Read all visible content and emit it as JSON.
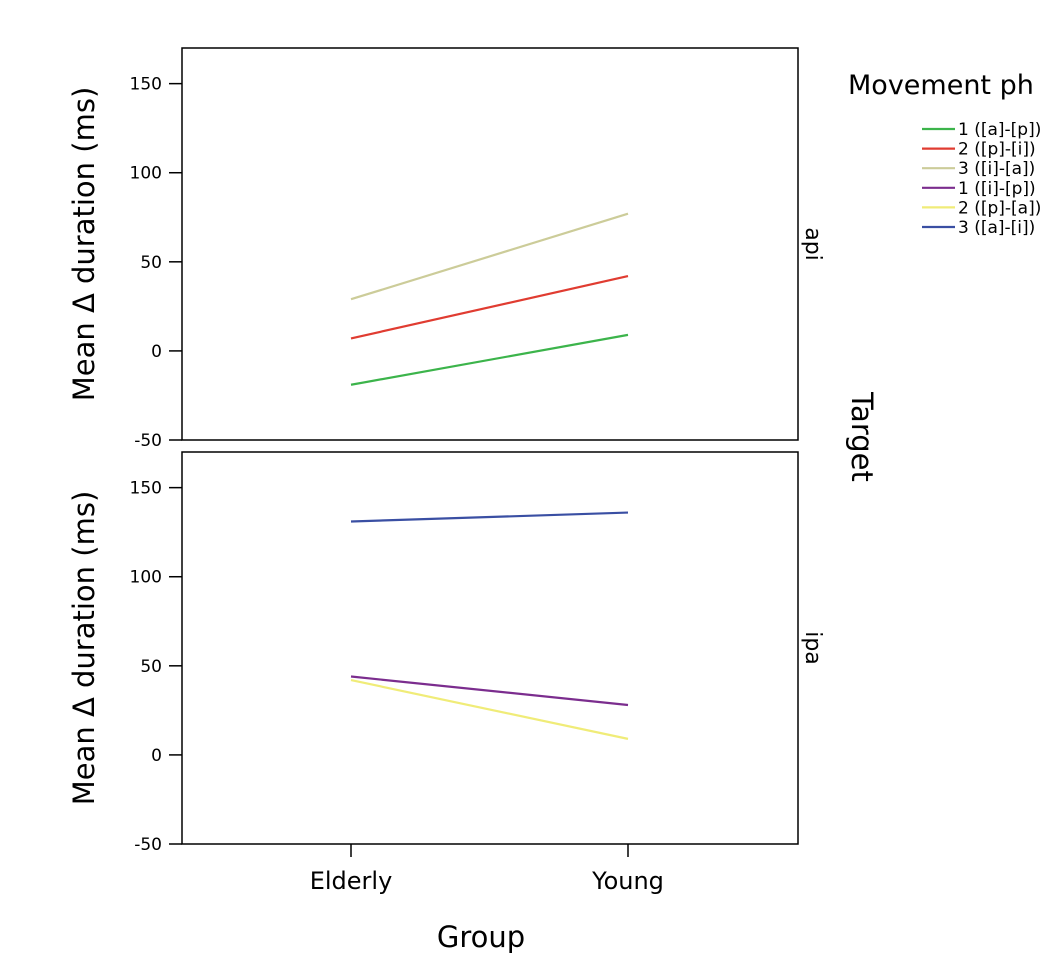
{
  "chart_data": {
    "type": "line",
    "x": [
      "Elderly",
      "Young"
    ],
    "xlabel": "Group",
    "ylabel": "Mean  Δ duration (ms)",
    "ylim": [
      -50,
      170
    ],
    "yticks": [
      -50,
      0,
      50,
      100,
      150
    ],
    "facet_title": "Target",
    "legend_title": "Movement ph",
    "legend_position": "top-right",
    "grid": false,
    "panels": [
      {
        "label": "api",
        "series": [
          {
            "name": "1 ([a]-[p])",
            "color": "#3cb44b",
            "values": [
              -19,
              9
            ]
          },
          {
            "name": "2 ([p]-[i])",
            "color": "#e03c31",
            "values": [
              7,
              42
            ]
          },
          {
            "name": "3 ([i]-[a])",
            "color": "#cccc99",
            "values": [
              29,
              77
            ]
          }
        ]
      },
      {
        "label": "ipa",
        "series": [
          {
            "name": "1 ([i]-[p])",
            "color": "#7b2d8e",
            "values": [
              44,
              28
            ]
          },
          {
            "name": "2 ([p]-[a])",
            "color": "#f0ec78",
            "values": [
              42,
              9
            ]
          },
          {
            "name": "3 ([a]-[i])",
            "color": "#3a4fa3",
            "values": [
              131,
              136
            ]
          }
        ]
      }
    ]
  }
}
